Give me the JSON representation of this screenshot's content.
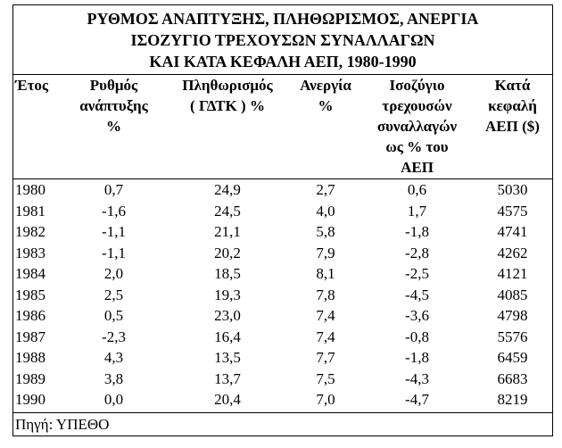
{
  "title": [
    "ΡΥΘΜΟΣ ΑΝΑΠΤΥΞΗΣ, ΠΛΗΘΩΡΙΣΜΟΣ, ΑΝΕΡΓΙΑ",
    "ΙΣΟΖΥΓΙΟ ΤΡΕΧΟΥΣΩΝ ΣΥΝΑΛΛΑΓΩΝ",
    "ΚΑΙ ΚΑΤΑ ΚΕΦΑΛΗ ΑΕΠ, 1980-1990"
  ],
  "table": {
    "header": [
      [
        "Έτος"
      ],
      [
        "Ρυθμός",
        "ανάπτυξης",
        "%"
      ],
      [
        "Πληθωρισμός",
        "( ΓΔΤΚ ) %"
      ],
      [
        "Ανεργία",
        "%"
      ],
      [
        "Ισοζύγιο",
        "τρεχουσών",
        "συναλλαγών",
        "ως % του",
        "ΑΕΠ"
      ],
      [
        "Κατά",
        "κεφαλή",
        "ΑΕΠ ($)"
      ]
    ],
    "rows": [
      [
        "1980",
        "0,7",
        "24,9",
        "2,7",
        "0,6",
        "5030"
      ],
      [
        "1981",
        "-1,6",
        "24,5",
        "4,0",
        "1,7",
        "4575"
      ],
      [
        "1982",
        "-1,1",
        "21,1",
        "5,8",
        "-1,8",
        "4741"
      ],
      [
        "1983",
        "-1,1",
        "20,2",
        "7,9",
        "-2,8",
        "4262"
      ],
      [
        "1984",
        "2,0",
        "18,5",
        "8,1",
        "-2,5",
        "4121"
      ],
      [
        "1985",
        "2,5",
        "19,3",
        "7,8",
        "-4,5",
        "4085"
      ],
      [
        "1986",
        "0,5",
        "23,0",
        "7,4",
        "-3,6",
        "4798"
      ],
      [
        "1987",
        "-2,3",
        "16,4",
        "7,4",
        "-0,8",
        "5576"
      ],
      [
        "1988",
        "4,3",
        "13,5",
        "7,7",
        "-1,8",
        "6459"
      ],
      [
        "1989",
        "3,8",
        "13,7",
        "7,5",
        "-4,3",
        "6683"
      ],
      [
        "1990",
        "0,0",
        "20,4",
        "7,0",
        "-4,7",
        "8219"
      ]
    ]
  },
  "source": "Πηγή: ΥΠΕΘΟ"
}
